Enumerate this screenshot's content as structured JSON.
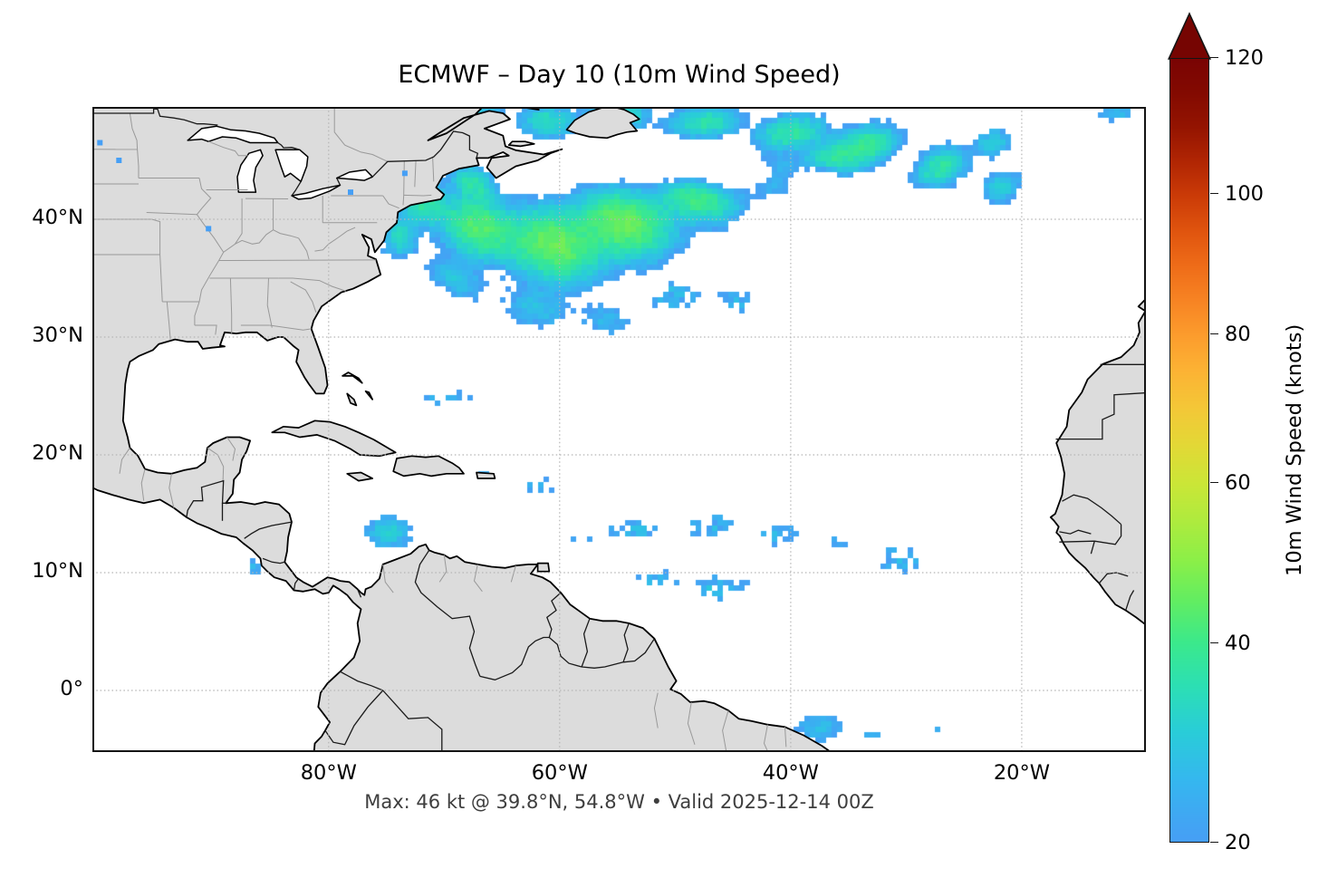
{
  "title": "ECMWF – Day 10 (10m Wind Speed)",
  "caption": "Max: 46 kt @ 39.8°N, 54.8°W • Valid 2025-12-14 00Z",
  "axes": {
    "lat_ticks": [
      {
        "label": "40°N",
        "value": 40
      },
      {
        "label": "30°N",
        "value": 30
      },
      {
        "label": "20°N",
        "value": 20
      },
      {
        "label": "10°N",
        "value": 10
      },
      {
        "label": "0°",
        "value": 0
      }
    ],
    "lon_ticks": [
      {
        "label": "80°W",
        "value": -80
      },
      {
        "label": "60°W",
        "value": -60
      },
      {
        "label": "40°W",
        "value": -40
      },
      {
        "label": "20°W",
        "value": -20
      }
    ]
  },
  "colorbar": {
    "label": "10m Wind Speed (knots)",
    "ticks": [
      {
        "label": "120",
        "value": 120
      },
      {
        "label": "100",
        "value": 100
      },
      {
        "label": "80",
        "value": 80
      },
      {
        "label": "60",
        "value": 60
      },
      {
        "label": "40",
        "value": 40
      },
      {
        "label": "20",
        "value": 20
      }
    ],
    "min": 20,
    "max": 120,
    "gamma": 0.85,
    "extend": "max",
    "arrow_color": "#760502",
    "stops": [
      [
        20,
        "#469ff5"
      ],
      [
        25,
        "#35b7ef"
      ],
      [
        30,
        "#29cdd8"
      ],
      [
        35,
        "#2cdfb4"
      ],
      [
        40,
        "#3be98c"
      ],
      [
        45,
        "#62ed62"
      ],
      [
        50,
        "#8bef48"
      ],
      [
        55,
        "#aeeb3e"
      ],
      [
        60,
        "#cbe637"
      ],
      [
        65,
        "#e3d836"
      ],
      [
        70,
        "#f4c737"
      ],
      [
        75,
        "#fcb334"
      ],
      [
        80,
        "#fc9c2d"
      ],
      [
        85,
        "#f78323"
      ],
      [
        90,
        "#ee6b18"
      ],
      [
        95,
        "#df530e"
      ],
      [
        100,
        "#ca3a07"
      ],
      [
        105,
        "#b02503"
      ],
      [
        110,
        "#941401"
      ],
      [
        115,
        "#830a01"
      ],
      [
        120,
        "#7a0403"
      ],
      [
        125,
        "#700101"
      ]
    ]
  },
  "map": {
    "land_color": "#dcdcdc",
    "ocean_color": "#ffffff",
    "coast_color": "#000000",
    "state_border_color": "#999999",
    "country_border_color": "#1a1a1a",
    "grid_color": "#b5b5b5",
    "frame_color": "#141414",
    "extent": {
      "lon_min": -100.45,
      "lon_max": -9.25,
      "lat_min": -5.23,
      "lat_max": 49.54
    }
  },
  "chart_data": {
    "type": "heatmap",
    "model": "ECMWF",
    "lead": "Day 10",
    "variable": "10m Wind Speed",
    "units": "knots",
    "threshold_min_kt": 20,
    "max_value_kt": 46,
    "max_location": {
      "lat": 39.8,
      "lon": -54.8
    },
    "valid_time": "2025-12-14 00Z",
    "colorbar_range": [
      20,
      120
    ],
    "wind_field": {
      "blobs": [
        [
          -66.5,
          48.9,
          2.5,
          1.4,
          0,
          30,
          0
        ],
        [
          -61,
          48.3,
          3.5,
          2.0,
          0,
          34,
          0
        ],
        [
          -55,
          48.9,
          4.0,
          2.0,
          0,
          35,
          0
        ],
        [
          -47.5,
          48.2,
          4.5,
          2.0,
          5,
          36,
          0
        ],
        [
          -40,
          47.3,
          4.5,
          2.2,
          8,
          37,
          0
        ],
        [
          -33.5,
          46.2,
          4.0,
          2.4,
          18,
          39,
          0
        ],
        [
          -27,
          44.3,
          3.5,
          2.4,
          28,
          37,
          0
        ],
        [
          -22.5,
          46.5,
          2.5,
          1.8,
          20,
          30,
          0
        ],
        [
          -22,
          42.5,
          3.0,
          2.0,
          30,
          33,
          0
        ],
        [
          -11.8,
          49.0,
          2.6,
          1.1,
          0,
          26,
          0
        ],
        [
          -71.8,
          41.3,
          3.0,
          2.6,
          -35,
          37,
          0
        ],
        [
          -73.8,
          38.5,
          2.2,
          2.6,
          -10,
          33,
          0
        ],
        [
          -67.5,
          43.0,
          3.0,
          2.0,
          -30,
          36,
          0
        ],
        [
          -67,
          39.3,
          5.0,
          3.6,
          -25,
          43,
          0
        ],
        [
          -60.5,
          37.8,
          6.0,
          4.2,
          -15,
          46,
          0
        ],
        [
          -54.5,
          39.6,
          6.0,
          4.0,
          -12,
          46,
          0
        ],
        [
          -48,
          41.8,
          5.0,
          3.0,
          -8,
          41,
          0
        ],
        [
          -42,
          43.8,
          4.0,
          2.4,
          -5,
          38,
          0
        ],
        [
          -36.5,
          45.0,
          3.5,
          2.4,
          10,
          38,
          0
        ],
        [
          -69,
          35,
          4.0,
          2.4,
          -28,
          28,
          0
        ],
        [
          -62,
          32.5,
          4.5,
          2.6,
          -12,
          27,
          0
        ],
        [
          -56,
          31.5,
          3.5,
          2.2,
          -8,
          25,
          0
        ],
        [
          -50,
          33.5,
          3.0,
          1.8,
          0,
          24,
          1
        ],
        [
          -44.5,
          33.0,
          3.0,
          1.5,
          0,
          22,
          1
        ],
        [
          -74.8,
          13.4,
          2.9,
          2.0,
          0,
          31,
          0
        ],
        [
          -70.5,
          19.0,
          2.4,
          1.0,
          5,
          23,
          1
        ],
        [
          -66.5,
          18.6,
          2.0,
          0.9,
          0,
          22,
          1
        ],
        [
          -62,
          17.3,
          2.2,
          1.2,
          0,
          21,
          1
        ],
        [
          -74.3,
          20.0,
          1.2,
          0.6,
          0,
          22,
          1
        ],
        [
          -70,
          24.8,
          4.5,
          0.7,
          8,
          21,
          1
        ],
        [
          -53.5,
          13.6,
          3.8,
          1.5,
          3,
          23,
          1
        ],
        [
          -47,
          14.0,
          3.5,
          1.4,
          3,
          23,
          1
        ],
        [
          -41,
          13.2,
          3.0,
          1.3,
          0,
          22,
          1
        ],
        [
          -35.5,
          12.3,
          2.6,
          1.3,
          0,
          21,
          1
        ],
        [
          -30.5,
          11.2,
          3.2,
          1.6,
          0,
          23,
          1
        ],
        [
          -58,
          12.5,
          2.0,
          1.0,
          0,
          21,
          1
        ],
        [
          -51.5,
          9.3,
          2.5,
          1.4,
          0,
          23,
          1
        ],
        [
          -46.5,
          8.8,
          4.0,
          1.6,
          0,
          24,
          1
        ],
        [
          -37.5,
          -3.2,
          3.2,
          1.9,
          0,
          27,
          0
        ],
        [
          -33,
          -4,
          1.6,
          1.0,
          0,
          21,
          1
        ],
        [
          -27.5,
          -3.4,
          1.2,
          0.8,
          0,
          21,
          1
        ],
        [
          -25.5,
          14.6,
          0.8,
          0.5,
          0,
          21,
          1
        ],
        [
          -23.5,
          13.6,
          0.6,
          0.4,
          0,
          21,
          1
        ],
        [
          -30,
          16.9,
          0.5,
          0.4,
          0,
          21,
          1
        ],
        [
          -86.4,
          10.5,
          1.3,
          0.9,
          0,
          23,
          1
        ],
        [
          -93.4,
          27.3,
          0.5,
          0.4,
          0,
          21,
          1
        ],
        [
          -96.2,
          26.1,
          0.4,
          0.3,
          0,
          21,
          1
        ],
        [
          -90.6,
          21.2,
          0.4,
          0.3,
          0,
          21,
          1
        ]
      ],
      "holes": [
        [
          -52,
          45.0,
          5.0,
          1.7,
          -5,
          0.95
        ],
        [
          -44.5,
          44.2,
          4.0,
          1.7,
          -5,
          0.92
        ],
        [
          -38,
          43.2,
          2.5,
          1.3,
          10,
          0.8
        ],
        [
          -28,
          40.0,
          5.5,
          2.2,
          15,
          0.97
        ],
        [
          -35,
          40.8,
          4.0,
          1.8,
          5,
          0.9
        ],
        [
          -57.5,
          44.6,
          2.0,
          1.2,
          0,
          0.85
        ]
      ],
      "land_specks": [
        [
          -99.8,
          46.5
        ],
        [
          -98.15,
          45.0
        ],
        [
          -90.4,
          39.2
        ],
        [
          -78.1,
          42.3
        ],
        [
          -73.4,
          43.9
        ]
      ]
    }
  }
}
